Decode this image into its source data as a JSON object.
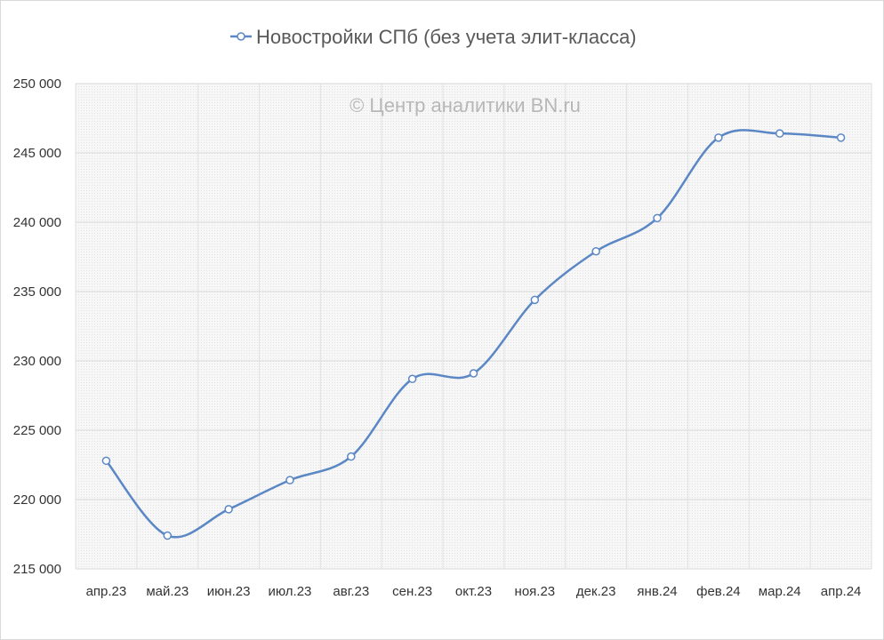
{
  "watermark": "© Центр аналитики BN.ru",
  "chart_data": {
    "type": "line",
    "categories": [
      "апр.23",
      "май.23",
      "июн.23",
      "июл.23",
      "авг.23",
      "сен.23",
      "окт.23",
      "ноя.23",
      "дек.23",
      "янв.24",
      "фев.24",
      "мар.24",
      "апр.24"
    ],
    "series": [
      {
        "name": "Новостройки СПб (без учета элит-класса)",
        "values": [
          222800,
          217400,
          219300,
          221400,
          223100,
          228700,
          229100,
          234400,
          237900,
          240300,
          246100,
          246400,
          246100
        ],
        "color": "#5b87c5"
      }
    ],
    "yticks": [
      "215 000",
      "220 000",
      "225 000",
      "230 000",
      "235 000",
      "240 000",
      "245 000",
      "250 000"
    ],
    "ylim": [
      215000,
      250000
    ],
    "smooth": true,
    "markers": "hollow-circle",
    "grid": true,
    "legend_position": "top"
  }
}
